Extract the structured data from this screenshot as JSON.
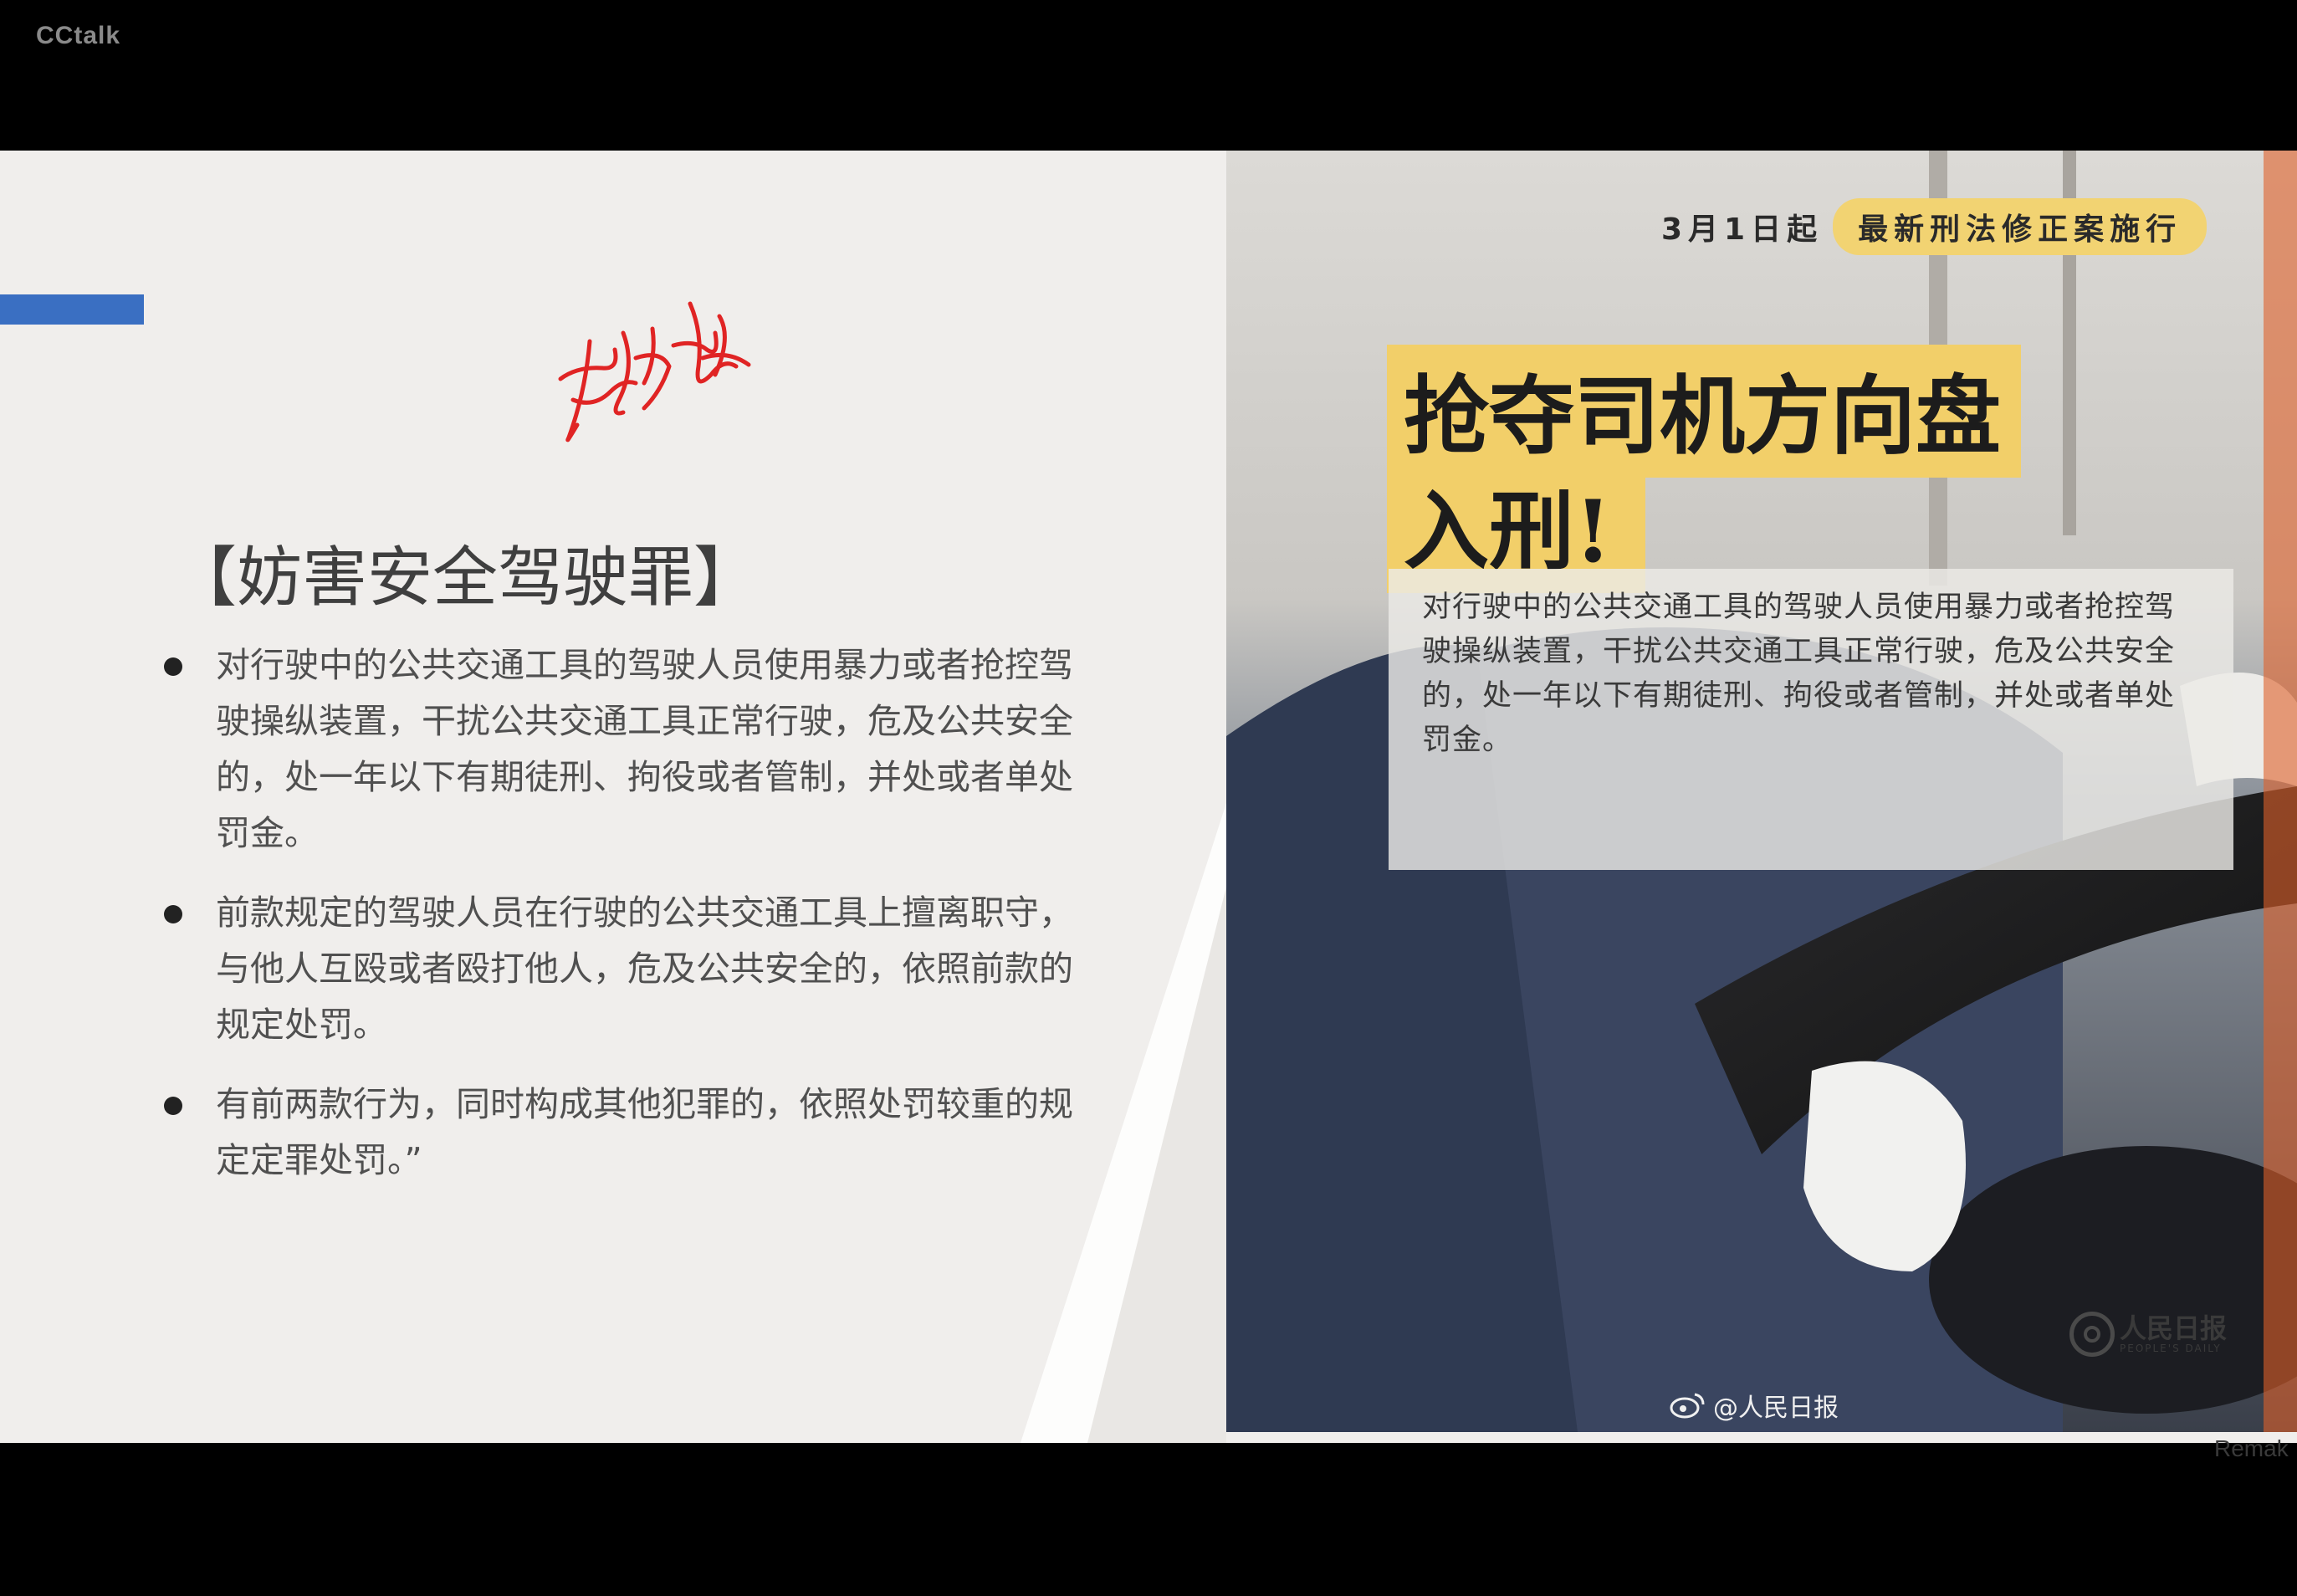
{
  "app": {
    "name": "CCtalk"
  },
  "slide": {
    "title": "【妨害安全驾驶罪】",
    "bullets": [
      "对行驶中的公共交通工具的驾驶人员使用暴力或者抢控驾驶操纵装置，干扰公共交通工具正常行驶，危及公共安全的，处一年以下有期徒刑、拘役或者管制，并处或者单处罚金。",
      "前款规定的驾驶人员在行驶的公共交通工具上擅离职守，与他人互殴或者殴打他人，危及公共安全的，依照前款的规定处罚。",
      "有前两款行为，同时构成其他犯罪的，依照处罚较重的规定定罪处罚。”"
    ],
    "colors": {
      "accent": "#3a6fc2",
      "annotation": "#e02424"
    }
  },
  "photo": {
    "date_text": "3月1日起",
    "date_badge": "最新刑法修正案施行",
    "headline_1": "抢夺司机方向盘",
    "headline_2": "入刑!",
    "body": "对行驶中的公共交通工具的驾驶人员使用暴力或者抢控驾驶操纵装置，干扰公共交通工具正常行驶，危及公共安全的，处一年以下有期徒刑、拘役或者管制，并处或者单处罚金。",
    "logo_cn": "人民日报",
    "logo_en": "PEOPLE'S DAILY",
    "weibo_handle": "@人民日报",
    "icons": [
      "weibo-icon",
      "people-daily-logo-icon"
    ],
    "colors": {
      "highlight": "#f2cf69"
    }
  },
  "footer": {
    "remark": "Remak"
  }
}
